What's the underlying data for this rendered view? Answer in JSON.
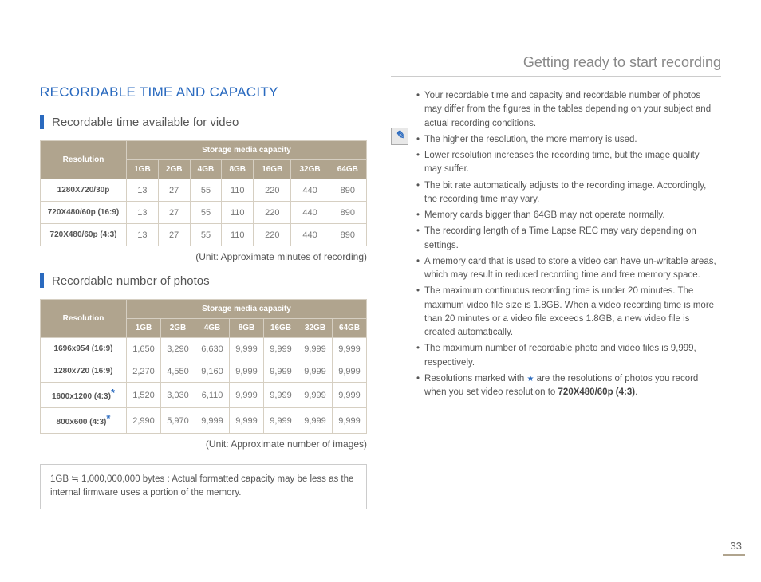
{
  "header": {
    "title": "Getting ready to start recording"
  },
  "section": {
    "title": "RECORDABLE TIME AND CAPACITY"
  },
  "sub1": {
    "title": "Recordable time available for video"
  },
  "sub2": {
    "title": "Recordable number of of photos"
  },
  "sub2fix": {
    "title": "Recordable number of photos"
  },
  "tableHead": {
    "resolution": "Resolution",
    "storage": "Storage media capacity"
  },
  "capacities": [
    "1GB",
    "2GB",
    "4GB",
    "8GB",
    "16GB",
    "32GB",
    "64GB"
  ],
  "videoTable": {
    "rows": [
      {
        "label": "1280X720/30p",
        "cells": [
          "13",
          "27",
          "55",
          "110",
          "220",
          "440",
          "890"
        ]
      },
      {
        "label": "720X480/60p (16:9)",
        "cells": [
          "13",
          "27",
          "55",
          "110",
          "220",
          "440",
          "890"
        ]
      },
      {
        "label": "720X480/60p (4:3)",
        "cells": [
          "13",
          "27",
          "55",
          "110",
          "220",
          "440",
          "890"
        ]
      }
    ],
    "unit": "(Unit: Approximate minutes of recording)"
  },
  "photoTable": {
    "rows": [
      {
        "label": "1696x954 (16:9)",
        "star": false,
        "cells": [
          "1,650",
          "3,290",
          "6,630",
          "9,999",
          "9,999",
          "9,999",
          "9,999"
        ]
      },
      {
        "label": "1280x720 (16:9)",
        "star": false,
        "cells": [
          "2,270",
          "4,550",
          "9,160",
          "9,999",
          "9,999",
          "9,999",
          "9,999"
        ]
      },
      {
        "label": "1600x1200 (4:3)",
        "star": true,
        "cells": [
          "1,520",
          "3,030",
          "6,110",
          "9,999",
          "9,999",
          "9,999",
          "9,999"
        ]
      },
      {
        "label": "800x600 (4:3)",
        "star": true,
        "cells": [
          "2,990",
          "5,970",
          "9,999",
          "9,999",
          "9,999",
          "9,999",
          "9,999"
        ]
      }
    ],
    "unit": "(Unit: Approximate number of images)"
  },
  "noteBox": {
    "text": "1GB ≒ 1,000,000,000 bytes : Actual formatted capacity may be less as the internal firmware uses a portion of the memory."
  },
  "bullets": {
    "b0": "Your recordable time and capacity and recordable number of photos may differ from the figures in the tables depending on your subject and actual recording conditions.",
    "b1": "The higher the resolution, the more memory is used.",
    "b2": "Lower resolution increases the recording time, but the image quality may suffer.",
    "b3": "The bit rate automatically adjusts to the recording image. Accordingly, the recording time may vary.",
    "b4": "Memory cards bigger than 64GB may not operate normally.",
    "b5": "The recording length of a Time Lapse REC may vary depending on settings.",
    "b6": "A memory card that is used to store a video can have un-writable areas, which may result in reduced recording time and free memory space.",
    "b7": "The maximum continuous recording time is under 20 minutes. The maximum video file size is 1.8GB. When a video recording time is more than 20 minutes or a video file exceeds 1.8GB, a new video file is created automatically.",
    "b8": "The maximum number of recordable photo and video files is 9,999, respectively.",
    "b9a": "Resolutions marked with ",
    "b9b": " are the resolutions of photos you record when you set video resolution to ",
    "b9bold": "720X480/60p (4:3)"
  },
  "pageNumber": "33",
  "colors": {
    "accent": "#2a6abf",
    "tableHeader": "#b0a48e",
    "border": "#d6cfc2",
    "text": "#555"
  }
}
